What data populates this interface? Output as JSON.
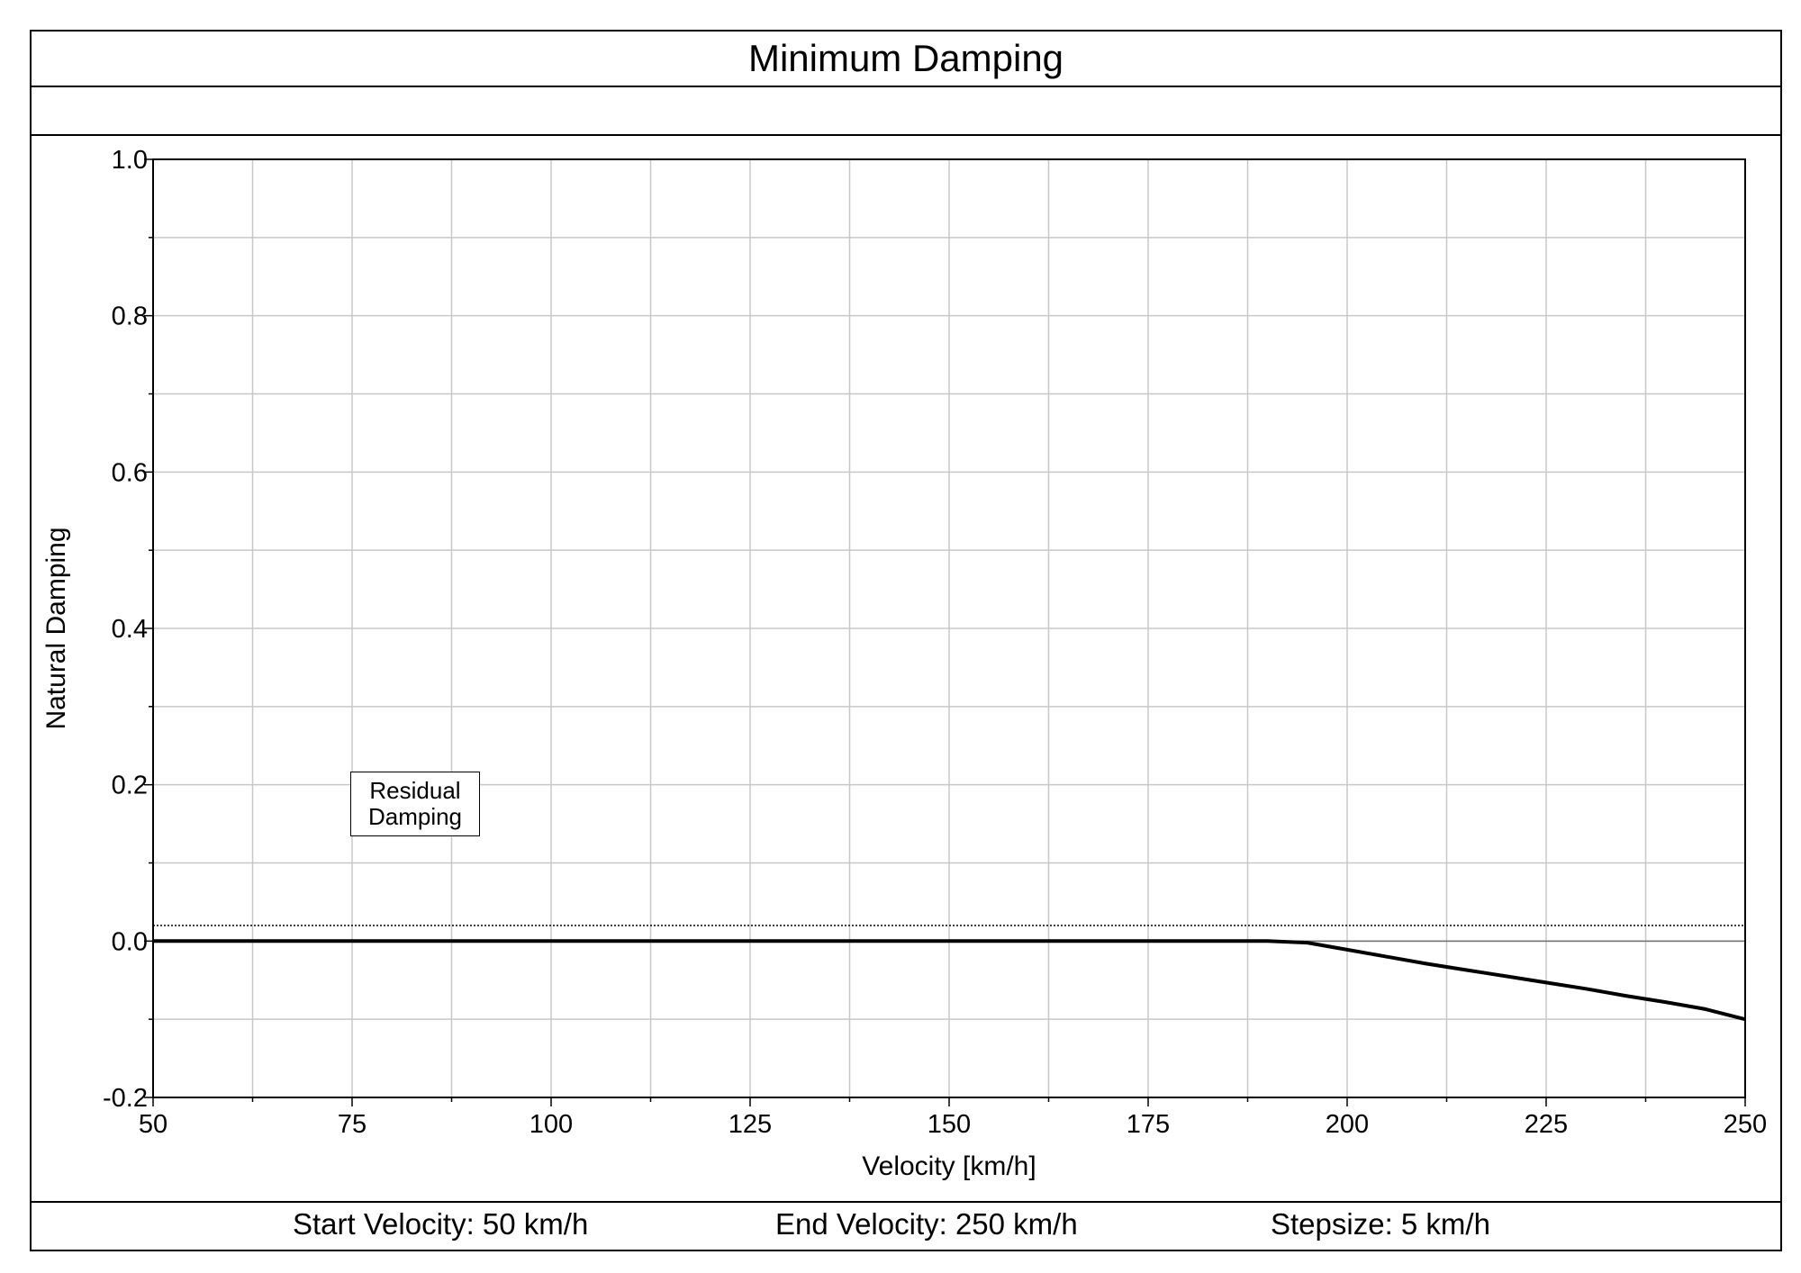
{
  "chart_data": {
    "type": "line",
    "title": "Minimum Damping",
    "xlabel": "Velocity [km/h]",
    "ylabel": "Natural Damping",
    "xlim": [
      50,
      250
    ],
    "ylim": [
      -0.2,
      1.0
    ],
    "x_ticks": [
      "50",
      "75",
      "100",
      "125",
      "150",
      "175",
      "200",
      "225",
      "250"
    ],
    "y_ticks": [
      "1.0",
      "0.8",
      "0.6",
      "0.4",
      "0.2",
      "0.0",
      "-0.2"
    ],
    "grid": true,
    "series": [
      {
        "style": "solid-thick",
        "color": "#000000",
        "x": [
          50,
          55,
          60,
          65,
          70,
          75,
          80,
          85,
          90,
          95,
          100,
          105,
          110,
          115,
          120,
          125,
          130,
          135,
          140,
          145,
          150,
          155,
          160,
          165,
          170,
          175,
          180,
          185,
          190,
          195,
          200,
          205,
          210,
          215,
          220,
          225,
          230,
          235,
          240,
          245,
          250
        ],
        "y": [
          0,
          0,
          0,
          0,
          0,
          0,
          0,
          0,
          0,
          0,
          0,
          0,
          0,
          0,
          0,
          0,
          0,
          0,
          0,
          0,
          0,
          0,
          0,
          0,
          0,
          0,
          0,
          0,
          0,
          -0.002,
          -0.011,
          -0.02,
          -0.029,
          -0.037,
          -0.045,
          -0.053,
          -0.061,
          -0.07,
          -0.078,
          -0.087,
          -0.1
        ]
      }
    ],
    "reference_lines": [
      {
        "y": 0.02,
        "style": "dotted",
        "color": "#000000"
      }
    ],
    "annotation": {
      "line1": "Residual",
      "line2": "Damping",
      "x": 82,
      "y": 0.17
    }
  },
  "footer": {
    "start": "Start Velocity: 50 km/h",
    "end": "End Velocity: 250 km/h",
    "step": "Stepsize: 5 km/h"
  }
}
